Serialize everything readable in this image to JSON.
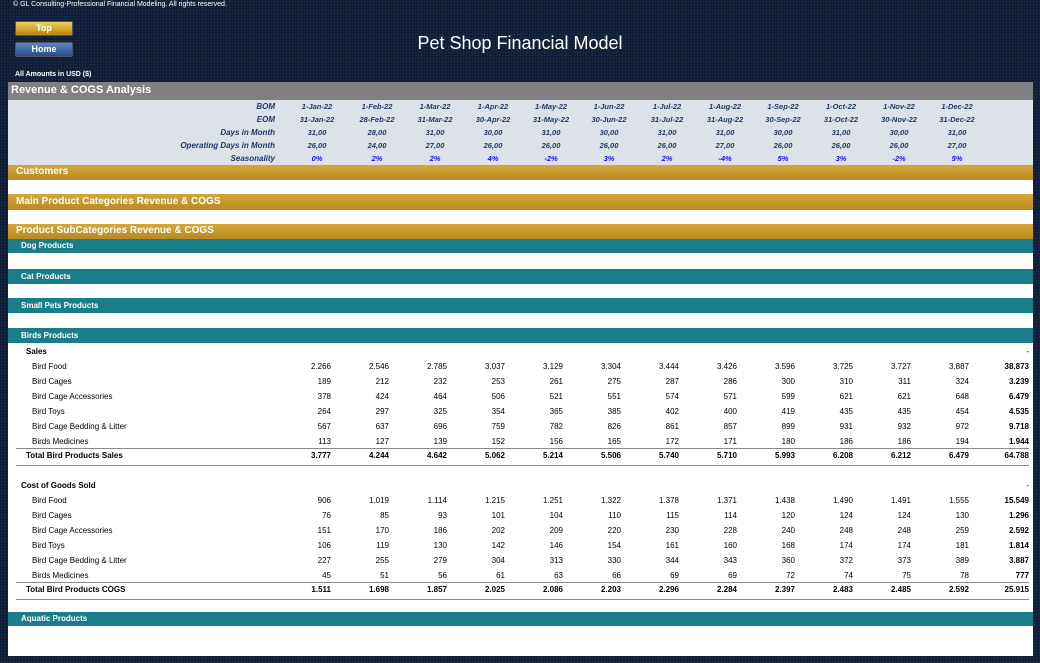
{
  "copyright": "© GL Consulting-Professional Financial Modeling. All rights reserved.",
  "nav": {
    "top_label": "Top",
    "home_label": "Home"
  },
  "title": "Pet Shop Financial Model",
  "amounts_note": "All Amounts in  USD ($)",
  "section_title": "Revenue & COGS Analysis",
  "header": {
    "bom_label": "BOM",
    "eom_label": "EOM",
    "days_label": "Days in Month",
    "opdays_label": "Operating Days in Month",
    "seasonality_label": "Seasonality",
    "bom": [
      "1-Jan-22",
      "1-Feb-22",
      "1-Mar-22",
      "1-Apr-22",
      "1-May-22",
      "1-Jun-22",
      "1-Jul-22",
      "1-Aug-22",
      "1-Sep-22",
      "1-Oct-22",
      "1-Nov-22",
      "1-Dec-22"
    ],
    "eom": [
      "31-Jan-22",
      "28-Feb-22",
      "31-Mar-22",
      "30-Apr-22",
      "31-May-22",
      "30-Jun-22",
      "31-Jul-22",
      "31-Aug-22",
      "30-Sep-22",
      "31-Oct-22",
      "30-Nov-22",
      "31-Dec-22"
    ],
    "days": [
      "31,00",
      "28,00",
      "31,00",
      "30,00",
      "31,00",
      "30,00",
      "31,00",
      "31,00",
      "30,00",
      "31,00",
      "30,00",
      "31,00"
    ],
    "opdays": [
      "26,00",
      "24,00",
      "27,00",
      "26,00",
      "26,00",
      "26,00",
      "26,00",
      "27,00",
      "26,00",
      "26,00",
      "26,00",
      "27,00"
    ],
    "seasonality": [
      "0%",
      "2%",
      "2%",
      "4%",
      "-2%",
      "3%",
      "2%",
      "-4%",
      "5%",
      "3%",
      "-2%",
      "5%"
    ]
  },
  "sections": {
    "customers": "Customers",
    "main_categories": "Main Product Categories Revenue & COGS",
    "subcategories": "Product SubCategories Revenue & COGS",
    "dog": "Dog Products",
    "cat": "Cat Products",
    "small_pets": "Small Pets Products",
    "birds": "Birds Products",
    "aquatic": "Aquatic Products"
  },
  "sales": {
    "label": "Sales",
    "dash": "-",
    "rows": [
      {
        "label": "Bird Food",
        "values": [
          "2.266",
          "2.546",
          "2.785",
          "3.037",
          "3.129",
          "3.304",
          "3.444",
          "3.426",
          "3.596",
          "3.725",
          "3.727",
          "3.887"
        ],
        "total": "38.873"
      },
      {
        "label": "Bird Cages",
        "values": [
          "189",
          "212",
          "232",
          "253",
          "261",
          "275",
          "287",
          "286",
          "300",
          "310",
          "311",
          "324"
        ],
        "total": "3.239"
      },
      {
        "label": "Bird Cage Accessories",
        "values": [
          "378",
          "424",
          "464",
          "506",
          "521",
          "551",
          "574",
          "571",
          "599",
          "621",
          "621",
          "648"
        ],
        "total": "6.479"
      },
      {
        "label": "Bird Toys",
        "values": [
          "264",
          "297",
          "325",
          "354",
          "365",
          "385",
          "402",
          "400",
          "419",
          "435",
          "435",
          "454"
        ],
        "total": "4.535"
      },
      {
        "label": "Bird Cage Bedding & Litter",
        "values": [
          "567",
          "637",
          "696",
          "759",
          "782",
          "826",
          "861",
          "857",
          "899",
          "931",
          "932",
          "972"
        ],
        "total": "9.718"
      },
      {
        "label": "Birds Medicines",
        "values": [
          "113",
          "127",
          "139",
          "152",
          "156",
          "165",
          "172",
          "171",
          "180",
          "186",
          "186",
          "194"
        ],
        "total": "1.944"
      }
    ],
    "total": {
      "label": "Total Bird Products Sales",
      "values": [
        "3.777",
        "4.244",
        "4.642",
        "5.062",
        "5.214",
        "5.506",
        "5.740",
        "5.710",
        "5.993",
        "6.208",
        "6.212",
        "6.479"
      ],
      "total": "64.788"
    }
  },
  "cogs": {
    "label": "Cost of Goods Sold",
    "dash": "-",
    "rows": [
      {
        "label": "Bird Food",
        "values": [
          "906",
          "1.019",
          "1.114",
          "1.215",
          "1.251",
          "1.322",
          "1.378",
          "1.371",
          "1.438",
          "1.490",
          "1.491",
          "1.555"
        ],
        "total": "15.549"
      },
      {
        "label": "Bird Cages",
        "values": [
          "76",
          "85",
          "93",
          "101",
          "104",
          "110",
          "115",
          "114",
          "120",
          "124",
          "124",
          "130"
        ],
        "total": "1.296"
      },
      {
        "label": "Bird Cage Accessories",
        "values": [
          "151",
          "170",
          "186",
          "202",
          "209",
          "220",
          "230",
          "228",
          "240",
          "248",
          "248",
          "259"
        ],
        "total": "2.592"
      },
      {
        "label": "Bird Toys",
        "values": [
          "106",
          "119",
          "130",
          "142",
          "146",
          "154",
          "161",
          "160",
          "168",
          "174",
          "174",
          "181"
        ],
        "total": "1.814"
      },
      {
        "label": "Bird Cage Bedding & Litter",
        "values": [
          "227",
          "255",
          "279",
          "304",
          "313",
          "330",
          "344",
          "343",
          "360",
          "372",
          "373",
          "389"
        ],
        "total": "3.887"
      },
      {
        "label": "Birds Medicines",
        "values": [
          "45",
          "51",
          "56",
          "61",
          "63",
          "66",
          "69",
          "69",
          "72",
          "74",
          "75",
          "78"
        ],
        "total": "777"
      }
    ],
    "total": {
      "label": "Total Bird Products COGS",
      "values": [
        "1.511",
        "1.698",
        "1.857",
        "2.025",
        "2.086",
        "2.203",
        "2.296",
        "2.284",
        "2.397",
        "2.483",
        "2.485",
        "2.592"
      ],
      "total": "25.915"
    }
  }
}
